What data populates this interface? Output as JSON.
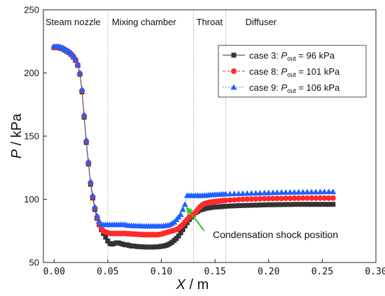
{
  "chart_data": {
    "type": "line",
    "xlabel_var": "X",
    "xlabel_unit": " / m",
    "ylabel_var": "P",
    "ylabel_unit": " / kPa",
    "xlim": [
      -0.01,
      0.3
    ],
    "ylim": [
      50,
      250
    ],
    "xticks": [
      "0.00",
      "0.05",
      "0.10",
      "0.15",
      "0.20",
      "0.25",
      "0.30"
    ],
    "yticks": [
      "50",
      "100",
      "150",
      "200",
      "250"
    ],
    "regions": [
      {
        "label": "Steam nozzle"
      },
      {
        "label": "Mixing chamber"
      },
      {
        "label": "Throat"
      },
      {
        "label": "Diffuser"
      }
    ],
    "region_boundaries_x": [
      0.05,
      0.13,
      0.16
    ],
    "annotation": {
      "text": "Condensation shock position",
      "arrow_from": [
        0.14,
        75
      ],
      "arrow_to": [
        0.123,
        94
      ]
    },
    "legend_position": "top-right",
    "series": [
      {
        "name_prefix": "case 3: ",
        "name_var": "P",
        "name_sub": "out",
        "name_suffix": " = 96 kPa",
        "color": "#333333",
        "marker": "square",
        "x": [
          0,
          0.002,
          0.004,
          0.006,
          0.008,
          0.01,
          0.012,
          0.014,
          0.016,
          0.018,
          0.02,
          0.022,
          0.024,
          0.026,
          0.028,
          0.03,
          0.032,
          0.034,
          0.036,
          0.038,
          0.04,
          0.042,
          0.044,
          0.046,
          0.048,
          0.05,
          0.052,
          0.054,
          0.056,
          0.058,
          0.06,
          0.062,
          0.064,
          0.066,
          0.068,
          0.07,
          0.072,
          0.074,
          0.076,
          0.078,
          0.08,
          0.082,
          0.084,
          0.086,
          0.088,
          0.09,
          0.092,
          0.094,
          0.096,
          0.098,
          0.1,
          0.102,
          0.104,
          0.106,
          0.108,
          0.11,
          0.112,
          0.114,
          0.116,
          0.118,
          0.12,
          0.122,
          0.124,
          0.126,
          0.128,
          0.13,
          0.132,
          0.134,
          0.136,
          0.138,
          0.14,
          0.142,
          0.144,
          0.146,
          0.148,
          0.15,
          0.152,
          0.154,
          0.156,
          0.158,
          0.16,
          0.164,
          0.168,
          0.172,
          0.176,
          0.18,
          0.184,
          0.188,
          0.192,
          0.196,
          0.2,
          0.204,
          0.208,
          0.212,
          0.216,
          0.22,
          0.224,
          0.228,
          0.232,
          0.236,
          0.24,
          0.244,
          0.248,
          0.252,
          0.256,
          0.26
        ],
        "y": [
          220,
          220,
          220,
          219.5,
          219,
          218,
          217,
          216,
          214.5,
          212.5,
          210,
          206,
          199,
          185,
          165,
          145,
          128,
          112,
          101,
          92,
          85,
          80,
          76,
          73,
          70,
          67,
          65,
          64.5,
          65,
          65.5,
          65.5,
          65,
          64.5,
          64,
          64,
          63.5,
          63,
          63,
          62.8,
          62.6,
          62.5,
          62.4,
          62.3,
          62.2,
          62.2,
          62.2,
          62.2,
          62.3,
          62.4,
          62.5,
          62.8,
          63,
          63.5,
          64,
          65,
          66,
          67.5,
          69,
          71,
          73.5,
          76,
          79,
          81.5,
          84,
          86,
          88,
          89.5,
          90.5,
          91.5,
          92,
          92.5,
          93,
          93.2,
          93.5,
          93.7,
          93.9,
          94,
          94.1,
          94.2,
          94.4,
          94.5,
          94.7,
          94.8,
          95,
          95.1,
          95.2,
          95.3,
          95.4,
          95.5,
          95.6,
          95.7,
          95.7,
          95.8,
          95.8,
          95.9,
          95.9,
          96,
          96,
          96,
          96,
          96,
          96,
          96,
          96,
          96,
          96
        ]
      },
      {
        "name_prefix": "case 8: ",
        "name_var": "P",
        "name_sub": "out",
        "name_suffix": " = 101 kPa",
        "color": "#ff2a2a",
        "marker": "circle",
        "x": [
          0,
          0.002,
          0.004,
          0.006,
          0.008,
          0.01,
          0.012,
          0.014,
          0.016,
          0.018,
          0.02,
          0.022,
          0.024,
          0.026,
          0.028,
          0.03,
          0.032,
          0.034,
          0.036,
          0.038,
          0.04,
          0.042,
          0.044,
          0.046,
          0.048,
          0.05,
          0.052,
          0.054,
          0.056,
          0.058,
          0.06,
          0.062,
          0.064,
          0.066,
          0.068,
          0.07,
          0.072,
          0.074,
          0.076,
          0.078,
          0.08,
          0.082,
          0.084,
          0.086,
          0.088,
          0.09,
          0.092,
          0.094,
          0.096,
          0.098,
          0.1,
          0.102,
          0.104,
          0.106,
          0.108,
          0.11,
          0.112,
          0.114,
          0.116,
          0.118,
          0.12,
          0.122,
          0.124,
          0.126,
          0.128,
          0.13,
          0.132,
          0.134,
          0.136,
          0.138,
          0.14,
          0.142,
          0.144,
          0.146,
          0.148,
          0.15,
          0.152,
          0.154,
          0.156,
          0.158,
          0.16,
          0.164,
          0.168,
          0.172,
          0.176,
          0.18,
          0.184,
          0.188,
          0.192,
          0.196,
          0.2,
          0.204,
          0.208,
          0.212,
          0.216,
          0.22,
          0.224,
          0.228,
          0.232,
          0.236,
          0.24,
          0.244,
          0.248,
          0.252,
          0.256,
          0.26
        ],
        "y": [
          220.5,
          220.5,
          220.5,
          220,
          219.5,
          218.5,
          217.5,
          216.5,
          215,
          213,
          210.5,
          206.5,
          199.5,
          186,
          166,
          146,
          129,
          113,
          102,
          93,
          86,
          81,
          77,
          75,
          74,
          73.5,
          73,
          73,
          73,
          73,
          73,
          73,
          73,
          73,
          72.8,
          72.7,
          72.6,
          72.5,
          72.4,
          72.3,
          72.2,
          72.1,
          72,
          72,
          72,
          72,
          72,
          72,
          72,
          72.2,
          72.5,
          73,
          73.5,
          74,
          74.5,
          75,
          75.5,
          76,
          77,
          78.5,
          80,
          82,
          84,
          86,
          87,
          88,
          90,
          92,
          94,
          95.5,
          96.5,
          97,
          97.5,
          97.8,
          98,
          98.2,
          98.4,
          98.6,
          98.8,
          99,
          99.2,
          99.4,
          99.6,
          99.8,
          100,
          100.1,
          100.2,
          100.3,
          100.4,
          100.5,
          100.6,
          100.6,
          100.7,
          100.7,
          100.8,
          100.8,
          100.9,
          100.9,
          101,
          101,
          101,
          101,
          101,
          101,
          101,
          101
        ]
      },
      {
        "name_prefix": "case 9: ",
        "name_var": "P",
        "name_sub": "out",
        "name_suffix": " = 106 kPa",
        "color": "#1f5fff",
        "marker": "triangle",
        "x": [
          0,
          0.002,
          0.004,
          0.006,
          0.008,
          0.01,
          0.012,
          0.014,
          0.016,
          0.018,
          0.02,
          0.022,
          0.024,
          0.026,
          0.028,
          0.03,
          0.032,
          0.034,
          0.036,
          0.038,
          0.04,
          0.042,
          0.044,
          0.046,
          0.048,
          0.05,
          0.052,
          0.054,
          0.056,
          0.058,
          0.06,
          0.062,
          0.064,
          0.066,
          0.068,
          0.07,
          0.072,
          0.074,
          0.076,
          0.078,
          0.08,
          0.082,
          0.084,
          0.086,
          0.088,
          0.09,
          0.092,
          0.094,
          0.096,
          0.098,
          0.1,
          0.102,
          0.104,
          0.106,
          0.108,
          0.11,
          0.112,
          0.114,
          0.116,
          0.118,
          0.12,
          0.122,
          0.124,
          0.126,
          0.128,
          0.13,
          0.132,
          0.134,
          0.136,
          0.138,
          0.14,
          0.142,
          0.144,
          0.146,
          0.148,
          0.15,
          0.152,
          0.154,
          0.156,
          0.158,
          0.16,
          0.164,
          0.168,
          0.172,
          0.176,
          0.18,
          0.184,
          0.188,
          0.192,
          0.196,
          0.2,
          0.204,
          0.208,
          0.212,
          0.216,
          0.22,
          0.224,
          0.228,
          0.232,
          0.236,
          0.24,
          0.244,
          0.248,
          0.252,
          0.256,
          0.26
        ],
        "y": [
          221,
          221,
          221,
          220.5,
          220,
          219,
          218,
          217,
          215.5,
          213.5,
          211,
          207,
          200,
          187,
          167,
          147,
          130,
          114,
          103,
          94,
          87,
          83,
          80,
          80,
          80,
          80,
          80,
          80,
          80,
          80,
          80,
          80,
          80,
          80,
          79.5,
          79.3,
          79.2,
          79.1,
          79,
          79,
          79,
          78.9,
          78.8,
          78.8,
          78.8,
          78.8,
          78.8,
          78.8,
          78.8,
          78.8,
          78.9,
          79,
          79.2,
          79.5,
          80,
          81,
          82,
          84,
          86,
          88,
          92,
          96,
          103,
          103,
          103,
          103,
          103,
          103,
          103,
          103,
          103,
          103.2,
          103.4,
          103.5,
          103.6,
          103.7,
          103.8,
          103.9,
          104,
          104.1,
          104.2,
          104.3,
          104.4,
          104.5,
          104.6,
          104.7,
          104.8,
          104.9,
          105,
          105.1,
          105.2,
          105.3,
          105.4,
          105.5,
          105.5,
          105.6,
          105.6,
          105.7,
          105.7,
          105.8,
          105.8,
          105.9,
          105.9,
          106,
          106,
          106
        ]
      }
    ]
  }
}
